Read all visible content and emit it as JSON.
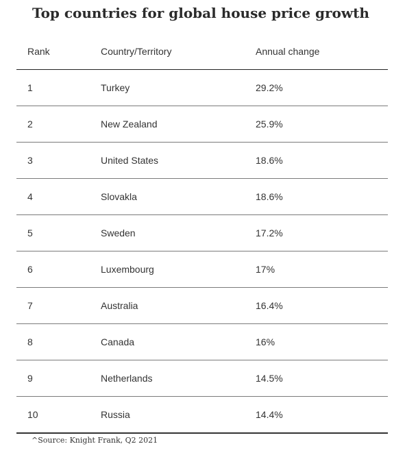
{
  "title": "Top countries for global house price growth",
  "footer": {
    "source": "^Source: Knight Frank, Q2 2021"
  },
  "chart_data": {
    "type": "table",
    "title": "Top countries for global house price growth",
    "columns": [
      "Rank",
      "Country/Territory",
      "Annual change"
    ],
    "rows": [
      {
        "rank": "1",
        "country": "Turkey",
        "change": "29.2%"
      },
      {
        "rank": "2",
        "country": "New Zealand",
        "change": "25.9%"
      },
      {
        "rank": "3",
        "country": "United States",
        "change": "18.6%"
      },
      {
        "rank": "4",
        "country": "Slovakla",
        "change": "18.6%"
      },
      {
        "rank": "5",
        "country": "Sweden",
        "change": "17.2%"
      },
      {
        "rank": "6",
        "country": "Luxembourg",
        "change": "17%"
      },
      {
        "rank": "7",
        "country": "Australia",
        "change": "16.4%"
      },
      {
        "rank": "8",
        "country": "Canada",
        "change": "16%"
      },
      {
        "rank": "9",
        "country": "Netherlands",
        "change": "14.5%"
      },
      {
        "rank": "10",
        "country": "Russia",
        "change": "14.4%"
      }
    ],
    "source": "^Source: Knight Frank, Q2 2021"
  }
}
